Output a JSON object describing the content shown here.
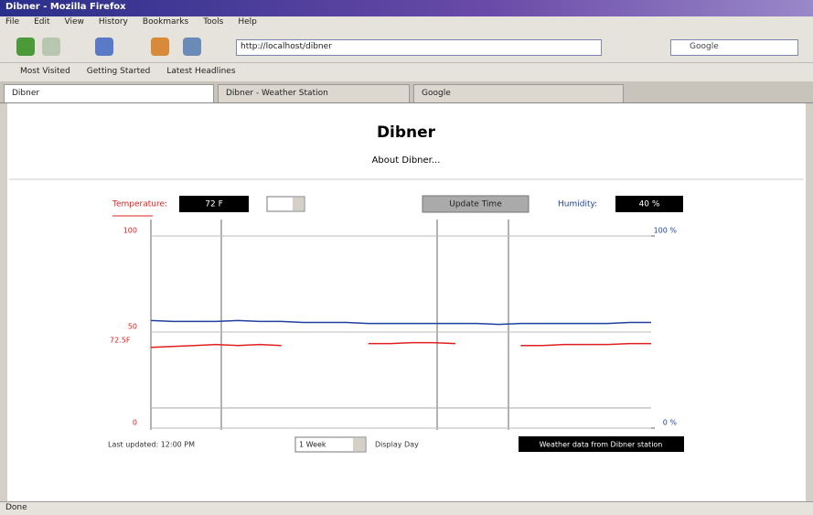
{
  "window": {
    "title": "Dibner - Mozilla Firefox",
    "menu": [
      "File",
      "Edit",
      "View",
      "History",
      "Bookmarks",
      "Tools",
      "Help"
    ],
    "address": "http://localhost/dibner",
    "search": "Google",
    "bookmarks": [
      "Most Visited",
      "Getting Started",
      "Latest Headlines"
    ],
    "tabs": [
      "Dibner",
      "Dibner - Weather Station",
      "Google"
    ],
    "status": "Done"
  },
  "page": {
    "title": "Dibner",
    "subtitle": "About Dibner...",
    "temperature_label": "Temperature:",
    "temperature_value": "72 F",
    "update_button": "Update Time",
    "humidity_label": "Humidity:",
    "humidity_value": "40 %",
    "current_temp_marker": "72.5F",
    "last_updated": "Last updated: 12:00 PM",
    "range_select": "1 Week",
    "display_label": "Display Day",
    "footer_bar": "Weather data from Dibner station"
  },
  "chart": {
    "type": "line",
    "ylim": [
      0,
      100
    ],
    "yticks": [
      0,
      50,
      100
    ],
    "y2lim": [
      0,
      100
    ],
    "y2ticks": [
      {
        "value": 0,
        "label": "0 %"
      },
      {
        "value": 100,
        "label": "100 %"
      }
    ],
    "series": [
      {
        "name": "Temperature",
        "color": "#e02020",
        "values": [
          42,
          42.5,
          43,
          43.5,
          43,
          43.5,
          43,
          null,
          null,
          null,
          44,
          44,
          44.5,
          44.5,
          44,
          null,
          null,
          43,
          43,
          43.5,
          43.5,
          43.5,
          44,
          44
        ]
      },
      {
        "name": "Humidity",
        "color": "#2040a0",
        "axis": "y2",
        "values": [
          56,
          55.5,
          55.5,
          55.5,
          56,
          55.5,
          55.5,
          55,
          55,
          55,
          54.5,
          54.5,
          54.5,
          54.5,
          54.5,
          54.5,
          54,
          54.5,
          54.5,
          54.5,
          54.5,
          54.5,
          55,
          55
        ]
      }
    ]
  }
}
